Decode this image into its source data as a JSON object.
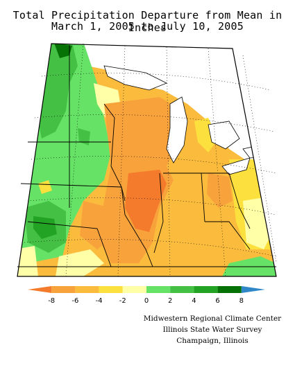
{
  "title": {
    "line1": "Total Precipitation Departure from Mean in Inches",
    "line2": "March 1, 2005 to July 10, 2005"
  },
  "legend": {
    "tick_labels": [
      "-8",
      "-6",
      "-4",
      "-2",
      "0",
      "2",
      "4",
      "6",
      "8"
    ],
    "colors": [
      "#f47a2c",
      "#f8a23c",
      "#fbbc3e",
      "#fbe03e",
      "#ffffa8",
      "#66e266",
      "#44c144",
      "#23a323",
      "#067206",
      "#2f87c8"
    ]
  },
  "credits": {
    "line1": "Midwestern Regional Climate Center",
    "line2": "Illinois State Water Survey",
    "line3": "Champaign, Illinois"
  }
}
